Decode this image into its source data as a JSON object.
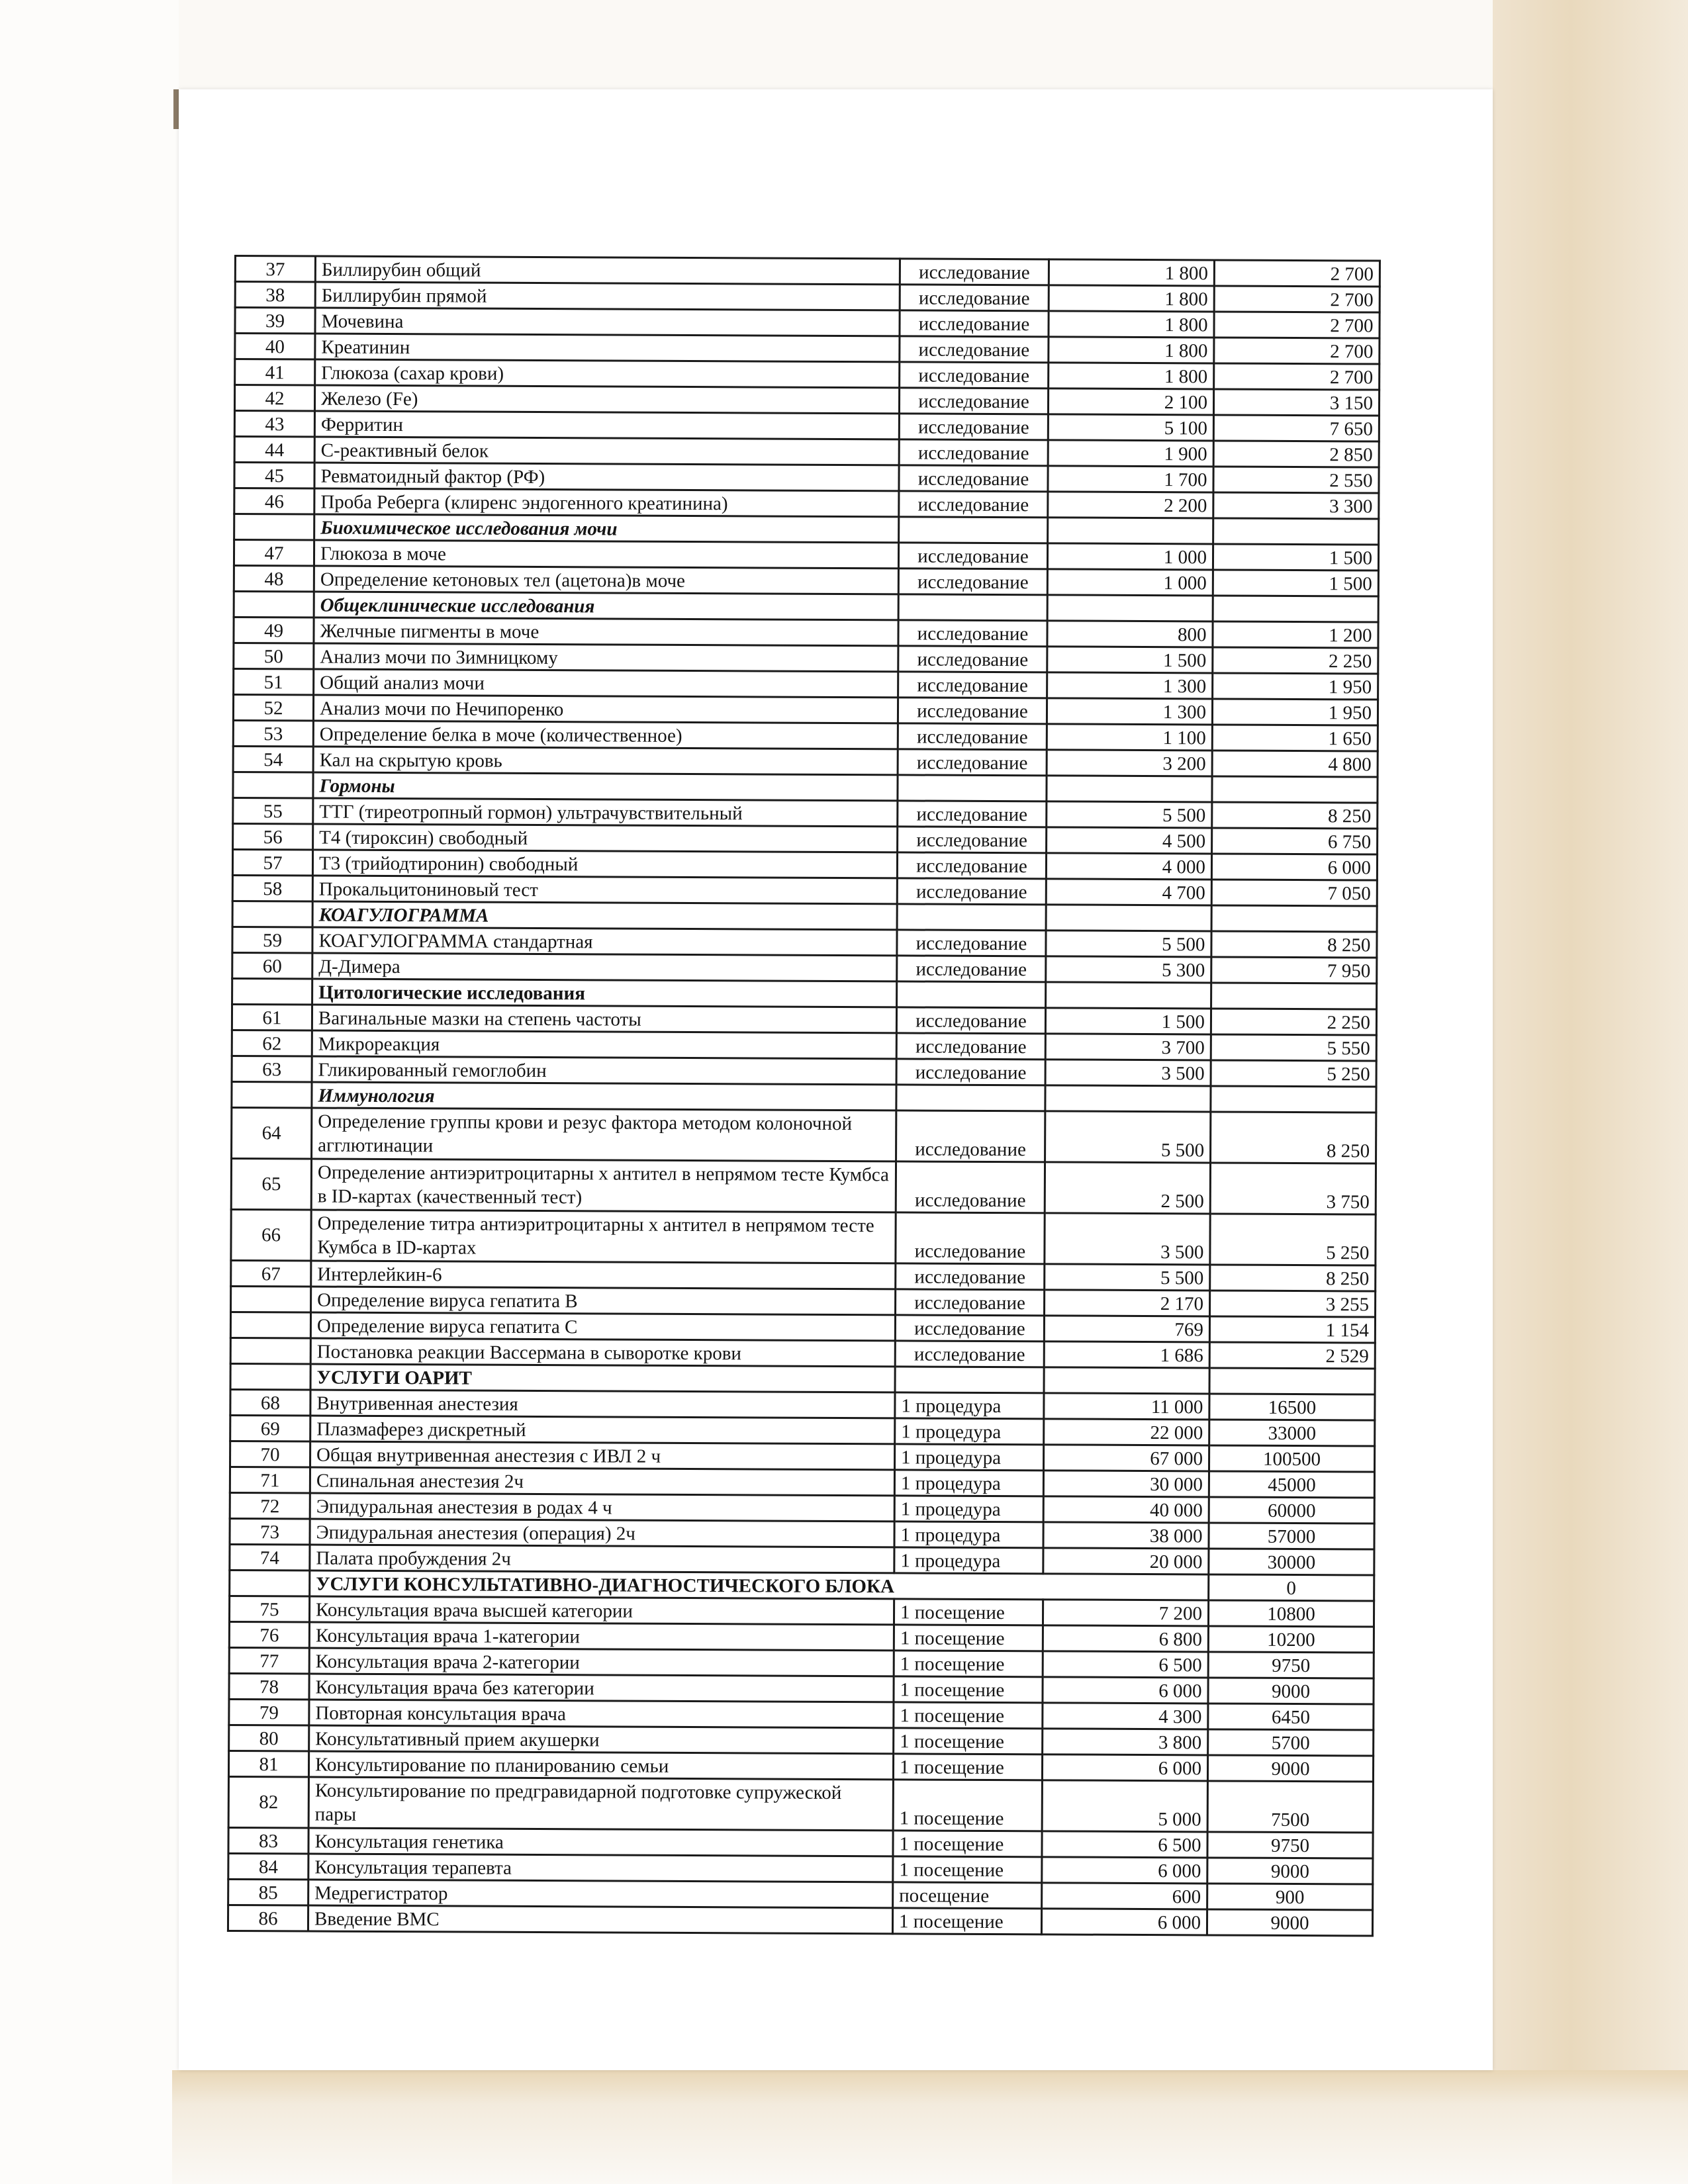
{
  "table": {
    "rows": [
      {
        "num": "37",
        "name": "Биллирубин общий",
        "unit": "исследование",
        "p1": "1 800",
        "p2": "2 700"
      },
      {
        "num": "38",
        "name": "Биллирубин прямой",
        "unit": "исследование",
        "p1": "1 800",
        "p2": "2 700"
      },
      {
        "num": "39",
        "name": "Мочевина",
        "unit": "исследование",
        "p1": "1 800",
        "p2": "2 700"
      },
      {
        "num": "40",
        "name": "Креатинин",
        "unit": "исследование",
        "p1": "1 800",
        "p2": "2 700"
      },
      {
        "num": "41",
        "name": "Глюкоза (сахар крови)",
        "unit": "исследование",
        "p1": "1 800",
        "p2": "2 700"
      },
      {
        "num": "42",
        "name": "Железо (Fe)",
        "unit": "исследование",
        "p1": "2 100",
        "p2": "3 150"
      },
      {
        "num": "43",
        "name": "Ферритин",
        "unit": "исследование",
        "p1": "5 100",
        "p2": "7 650"
      },
      {
        "num": "44",
        "name": "С-реактивный белок",
        "unit": "исследование",
        "p1": "1 900",
        "p2": "2 850"
      },
      {
        "num": "45",
        "name": "Ревматоидный фактор (РФ)",
        "unit": "исследование",
        "p1": "1 700",
        "p2": "2 550"
      },
      {
        "num": "46",
        "name": "Проба Реберга (клиренс эндогенного креатинина)",
        "unit": "исследование",
        "p1": "2 200",
        "p2": "3 300"
      },
      {
        "section": true,
        "italic": true,
        "name": "Биохимическое исследования мочи"
      },
      {
        "num": "47",
        "name": "Глюкоза в моче",
        "unit": "исследование",
        "p1": "1 000",
        "p2": "1 500"
      },
      {
        "num": "48",
        "name": "Определение кетоновых тел (ацетона)в моче",
        "unit": "исследование",
        "p1": "1 000",
        "p2": "1 500"
      },
      {
        "section": true,
        "italic": true,
        "name": "Общеклинические исследования"
      },
      {
        "num": "49",
        "name": "Желчные пигменты в моче",
        "unit": "исследование",
        "p1": "800",
        "p2": "1 200"
      },
      {
        "num": "50",
        "name": "Анализ мочи по Зимницкому",
        "unit": "исследование",
        "p1": "1 500",
        "p2": "2 250"
      },
      {
        "num": "51",
        "name": "Общий анализ мочи",
        "unit": "исследование",
        "p1": "1 300",
        "p2": "1 950"
      },
      {
        "num": "52",
        "name": "Анализ мочи по Нечипоренко",
        "unit": "исследование",
        "p1": "1 300",
        "p2": "1 950"
      },
      {
        "num": "53",
        "name": "Определение белка в моче (количественное)",
        "unit": "исследование",
        "p1": "1 100",
        "p2": "1 650"
      },
      {
        "num": "54",
        "name": "Кал на скрытую кровь",
        "unit": "исследование",
        "p1": "3 200",
        "p2": "4 800"
      },
      {
        "section": true,
        "italic": true,
        "name": "Гормоны"
      },
      {
        "num": "55",
        "name": "ТТГ (тиреотропный гормон) ультрачувствительный",
        "unit": "исследование",
        "p1": "5 500",
        "p2": "8 250"
      },
      {
        "num": "56",
        "name": "Т4 (тироксин) свободный",
        "unit": "исследование",
        "p1": "4 500",
        "p2": "6 750"
      },
      {
        "num": "57",
        "name": "Т3 (трийодтиронин) свободный",
        "unit": "исследование",
        "p1": "4 000",
        "p2": "6 000"
      },
      {
        "num": "58",
        "name": "Прокальцитониновый тест",
        "unit": "исследование",
        "p1": "4 700",
        "p2": "7 050"
      },
      {
        "section": true,
        "italic": true,
        "name": "КОАГУЛОГРАММА"
      },
      {
        "num": "59",
        "name": "КОАГУЛОГРАММА стандартная",
        "unit": "исследование",
        "p1": "5 500",
        "p2": "8 250"
      },
      {
        "num": "60",
        "name": "Д-Димера",
        "unit": "исследование",
        "p1": "5 300",
        "p2": "7 950"
      },
      {
        "section": true,
        "italic": false,
        "name": "Цитологические исследования"
      },
      {
        "num": "61",
        "name": "Вагинальные мазки на степень частоты",
        "unit": "исследование",
        "p1": "1 500",
        "p2": "2 250"
      },
      {
        "num": "62",
        "name": "Микрореакция",
        "unit": "исследование",
        "p1": "3 700",
        "p2": "5 550"
      },
      {
        "num": "63",
        "name": "Гликированный гемоглобин",
        "unit": "исследование",
        "p1": "3 500",
        "p2": "5 250"
      },
      {
        "section": true,
        "italic": true,
        "name": "Иммунология"
      },
      {
        "num": "64",
        "tall": true,
        "name": "Определение группы крови и резус фактора методом колоночной агглютинации",
        "unit": "исследование",
        "p1": "5 500",
        "p2": "8 250"
      },
      {
        "num": "65",
        "tall": true,
        "name": "Определение антиэритроцитарны х антител в непрямом тесте Кумбса в ID-картах (качественный тест)",
        "unit": "исследование",
        "p1": "2 500",
        "p2": "3 750"
      },
      {
        "num": "66",
        "tall": true,
        "name": "Определение титра антиэритроцитарны х антител в непрямом тесте Кумбса в ID-картах",
        "unit": "исследование",
        "p1": "3 500",
        "p2": "5 250"
      },
      {
        "num": "67",
        "name": "Интерлейкин-6",
        "unit": "исследование",
        "p1": "5 500",
        "p2": "8 250"
      },
      {
        "num": "",
        "name": "Определение  вируса гепатита В",
        "unit": "исследование",
        "p1": "2 170",
        "p2": "3 255"
      },
      {
        "num": "",
        "name": "Определение  вируса гепатита С",
        "unit": "исследование",
        "p1": "769",
        "p2": "1 154"
      },
      {
        "num": "",
        "name": "Постановка реакции Вассермана в сыворотке крови",
        "unit": "исследование",
        "p1": "1 686",
        "p2": "2 529"
      },
      {
        "section": true,
        "italic": false,
        "oarit": true,
        "name": "УСЛУГИ ОАРИТ"
      },
      {
        "num": "68",
        "oarit": true,
        "name": "Внутривенная анестезия",
        "unit": "1 процедура",
        "p1": "11 000",
        "p2": "16500"
      },
      {
        "num": "69",
        "oarit": true,
        "name": "Плазмаферез дискретный",
        "unit": "1 процедура",
        "p1": "22 000",
        "p2": "33000"
      },
      {
        "num": "70",
        "oarit": true,
        "name": "Общая внутривенная анестезия с ИВЛ  2 ч",
        "unit": "1 процедура",
        "p1": "67 000",
        "p2": "100500"
      },
      {
        "num": "71",
        "oarit": true,
        "name": "Спинальная анестезия  2ч",
        "unit": "1 процедура",
        "p1": "30 000",
        "p2": "45000"
      },
      {
        "num": "72",
        "oarit": true,
        "name": "Эпидуральная анестезия в родах 4 ч",
        "unit": "1 процедура",
        "p1": "40 000",
        "p2": "60000"
      },
      {
        "num": "73",
        "oarit": true,
        "name": "Эпидуральная анестезия (операция) 2ч",
        "unit": "1 процедура",
        "p1": "38 000",
        "p2": "57000"
      },
      {
        "num": "74",
        "oarit": true,
        "name": "Палата пробуждения 2ч",
        "unit": "1 процедура",
        "p1": "20 000",
        "p2": "30000"
      },
      {
        "section": true,
        "italic": false,
        "oarit": true,
        "wide": true,
        "name": "УСЛУГИ КОНСУЛЬТАТИВНО-ДИАГНОСТИЧЕСКОГО БЛОКА",
        "p2": "0"
      },
      {
        "num": "75",
        "oarit": true,
        "name": "Консультация врача высшей категории",
        "unit": "1 посещение",
        "p1": "7 200",
        "p2": "10800"
      },
      {
        "num": "76",
        "oarit": true,
        "name": "Консультация врача 1-категории",
        "unit": "1 посещение",
        "p1": "6 800",
        "p2": "10200"
      },
      {
        "num": "77",
        "oarit": true,
        "name": "Консультация врача 2-категории",
        "unit": "1 посещение",
        "p1": "6 500",
        "p2": "9750"
      },
      {
        "num": "78",
        "oarit": true,
        "name": "Консультация врача без категории",
        "unit": "1 посещение",
        "p1": "6 000",
        "p2": "9000"
      },
      {
        "num": "79",
        "oarit": true,
        "name": "Повторная консультация врача",
        "unit": "1 посещение",
        "p1": "4 300",
        "p2": "6450"
      },
      {
        "num": "80",
        "oarit": true,
        "name": "Консультативный прием  акушерки",
        "unit": "1 посещение",
        "p1": "3 800",
        "p2": "5700"
      },
      {
        "num": "81",
        "oarit": true,
        "name": "Консультирование по планированию семьи",
        "unit": "1 посещение",
        "p1": "6 000",
        "p2": "9000"
      },
      {
        "num": "82",
        "oarit": true,
        "tall": true,
        "name": "Консультирование по предгравидарной подготовке супружеской пары",
        "unit": "1 посещение",
        "p1": "5 000",
        "p2": "7500"
      },
      {
        "num": "83",
        "oarit": true,
        "name": "Консультация генетика",
        "unit": "1 посещение",
        "p1": "6 500",
        "p2": "9750"
      },
      {
        "num": "84",
        "oarit": true,
        "name": "Консультация терапевта",
        "unit": "1 посещение",
        "p1": "6 000",
        "p2": "9000"
      },
      {
        "num": "85",
        "oarit": true,
        "name": "Медрегистратор",
        "unit": "посещение",
        "p1": "600",
        "p2": "900"
      },
      {
        "num": "86",
        "oarit": true,
        "name": "Введение ВМС",
        "unit": "1 посещение",
        "p1": "6 000",
        "p2": "9000"
      }
    ]
  }
}
